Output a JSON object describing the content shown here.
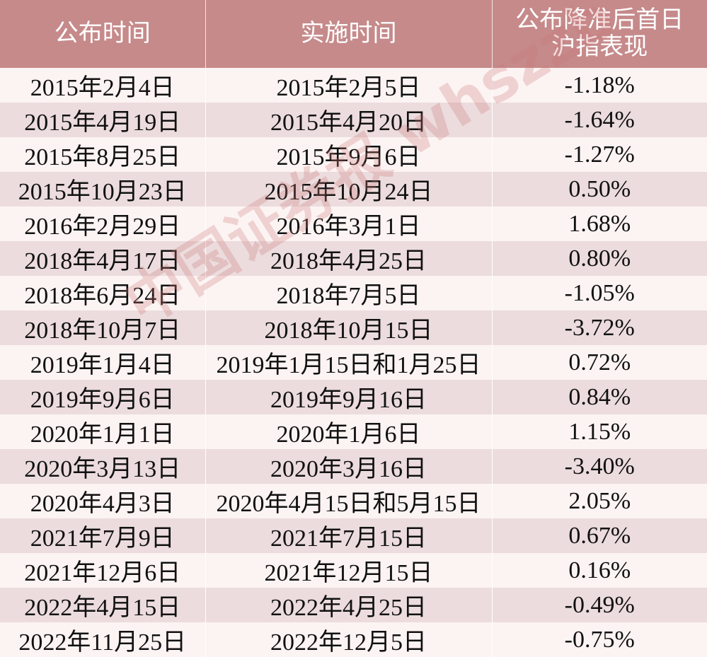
{
  "table": {
    "headers": [
      "公布时间",
      "实施时间",
      "公布降准后首日沪指表现"
    ],
    "rows": [
      [
        "2015年2月4日",
        "2015年2月5日",
        "-1.18%"
      ],
      [
        "2015年4月19日",
        "2015年4月20日",
        "-1.64%"
      ],
      [
        "2015年8月25日",
        "2015年9月6日",
        "-1.27%"
      ],
      [
        "2015年10月23日",
        "2015年10月24日",
        "0.50%"
      ],
      [
        "2016年2月29日",
        "2016年3月1日",
        "1.68%"
      ],
      [
        "2018年4月17日",
        "2018年4月25日",
        "0.80%"
      ],
      [
        "2018年6月24日",
        "2018年7月5日",
        "-1.05%"
      ],
      [
        "2018年10月7日",
        "2018年10月15日",
        "-3.72%"
      ],
      [
        "2019年1月4日",
        "2019年1月15日和1月25日",
        "0.72%"
      ],
      [
        "2019年9月6日",
        "2019年9月16日",
        "0.84%"
      ],
      [
        "2020年1月1日",
        "2020年1月6日",
        "1.15%"
      ],
      [
        "2020年3月13日",
        "2020年3月16日",
        "-3.40%"
      ],
      [
        "2020年4月3日",
        "2020年4月15日和5月15日",
        "2.05%"
      ],
      [
        "2021年7月9日",
        "2021年7月15日",
        "0.67%"
      ],
      [
        "2021年12月6日",
        "2021年12月15日",
        "0.16%"
      ],
      [
        "2022年4月15日",
        "2022年4月25日",
        "-0.49%"
      ],
      [
        "2022年11月25日",
        "2022年12月5日",
        "-0.75%"
      ]
    ]
  },
  "watermark": "中国证券报 whszzb",
  "colors": {
    "header": "#c68a8b",
    "row_light": "#fcf4f3",
    "row_dark": "#ecdcdd"
  }
}
